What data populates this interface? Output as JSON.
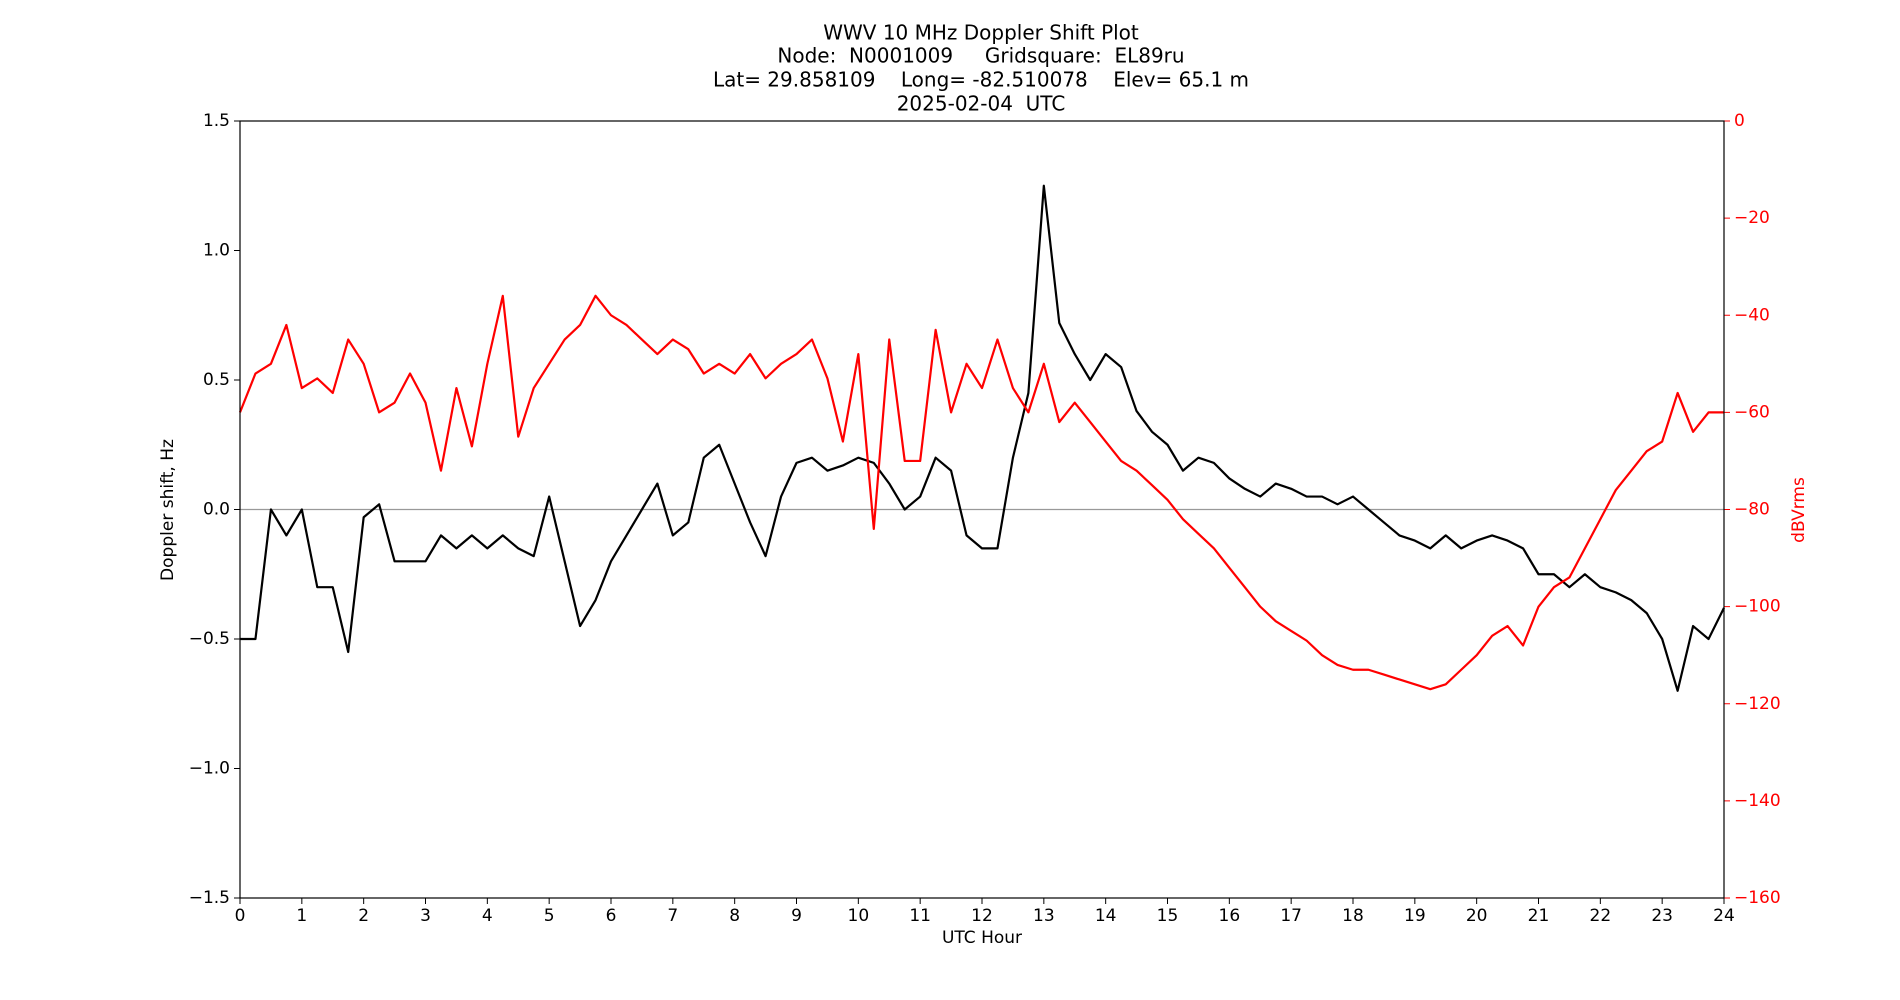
{
  "chart_data": {
    "type": "line",
    "title": "WWV 10 MHz Doppler Shift Plot",
    "subtitle": [
      "Node:  N0001009     Gridsquare:  EL89ru",
      "Lat= 29.858109    Long= -82.510078    Elev= 65.1 m",
      "2025-02-04  UTC"
    ],
    "xlabel": "UTC Hour",
    "ylabel": "Doppler shift, Hz",
    "y2label": "dBVrms",
    "x": [
      0,
      0.25,
      0.5,
      0.75,
      1,
      1.25,
      1.5,
      1.75,
      2,
      2.25,
      2.5,
      2.75,
      3,
      3.25,
      3.5,
      3.75,
      4,
      4.25,
      4.5,
      4.75,
      5,
      5.25,
      5.5,
      5.75,
      6,
      6.25,
      6.5,
      6.75,
      7,
      7.25,
      7.5,
      7.75,
      8,
      8.25,
      8.5,
      8.75,
      9,
      9.25,
      9.5,
      9.75,
      10,
      10.25,
      10.5,
      10.75,
      11,
      11.25,
      11.5,
      11.75,
      12,
      12.25,
      12.5,
      12.75,
      13,
      13.25,
      13.5,
      13.75,
      14,
      14.25,
      14.5,
      14.75,
      15,
      15.25,
      15.5,
      15.75,
      16,
      16.25,
      16.5,
      16.75,
      17,
      17.25,
      17.5,
      17.75,
      18,
      18.25,
      18.5,
      18.75,
      19,
      19.25,
      19.5,
      19.75,
      20,
      20.25,
      20.5,
      20.75,
      21,
      21.25,
      21.5,
      21.75,
      22,
      22.25,
      22.5,
      22.75,
      23,
      23.25,
      23.5,
      23.75,
      24
    ],
    "series": [
      {
        "name": "Doppler shift",
        "color": "#000000",
        "values": [
          -0.5,
          -0.5,
          0.0,
          -0.1,
          0.0,
          -0.3,
          -0.3,
          -0.55,
          -0.03,
          0.02,
          -0.2,
          -0.2,
          -0.2,
          -0.1,
          -0.15,
          -0.1,
          -0.15,
          -0.1,
          -0.15,
          -0.18,
          0.05,
          -0.2,
          -0.45,
          -0.35,
          -0.2,
          -0.1,
          0.0,
          0.1,
          -0.1,
          -0.05,
          0.2,
          0.25,
          0.1,
          -0.05,
          -0.18,
          0.05,
          0.18,
          0.2,
          0.15,
          0.17,
          0.2,
          0.18,
          0.1,
          0.0,
          0.05,
          0.2,
          0.15,
          -0.1,
          -0.15,
          -0.15,
          0.2,
          0.45,
          1.25,
          0.72,
          0.6,
          0.5,
          0.6,
          0.55,
          0.38,
          0.3,
          0.25,
          0.15,
          0.2,
          0.18,
          0.12,
          0.08,
          0.05,
          0.1,
          0.08,
          0.05,
          0.05,
          0.02,
          0.05,
          0.0,
          -0.05,
          -0.1,
          -0.12,
          -0.15,
          -0.1,
          -0.15,
          -0.12,
          -0.1,
          -0.12,
          -0.15,
          -0.25,
          -0.25,
          -0.3,
          -0.25,
          -0.3,
          -0.32,
          -0.35,
          -0.4,
          -0.5,
          -0.7,
          -0.45,
          -0.5,
          -0.38
        ]
      },
      {
        "name": "dBVrms",
        "color": "#ff0000",
        "axis": "y2",
        "values": [
          -60,
          -52,
          -50,
          -42,
          -55,
          -53,
          -56,
          -45,
          -50,
          -60,
          -58,
          -52,
          -58,
          -72,
          -55,
          -67,
          -50,
          -36,
          -65,
          -55,
          -50,
          -45,
          -42,
          -36,
          -40,
          -42,
          -45,
          -48,
          -45,
          -47,
          -52,
          -50,
          -52,
          -48,
          -53,
          -50,
          -48,
          -45,
          -53,
          -66,
          -48,
          -84,
          -45,
          -70,
          -70,
          -43,
          -60,
          -50,
          -55,
          -45,
          -55,
          -60,
          -50,
          -62,
          -58,
          -62,
          -66,
          -70,
          -72,
          -75,
          -78,
          -82,
          -85,
          -88,
          -92,
          -96,
          -100,
          -103,
          -105,
          -107,
          -110,
          -112,
          -113,
          -113,
          -114,
          -115,
          -116,
          -117,
          -116,
          -113,
          -110,
          -106,
          -104,
          -108,
          -100,
          -96,
          -94,
          -88,
          -82,
          -76,
          -72,
          -68,
          -66,
          -56,
          -64,
          -60,
          -60
        ]
      }
    ],
    "xlim": [
      0,
      24
    ],
    "xticks": [
      0,
      1,
      2,
      3,
      4,
      5,
      6,
      7,
      8,
      9,
      10,
      11,
      12,
      13,
      14,
      15,
      16,
      17,
      18,
      19,
      20,
      21,
      22,
      23,
      24
    ],
    "ylim": [
      -1.5,
      1.5
    ],
    "yticks": [
      {
        "value": -1.5,
        "label": "−1.5"
      },
      {
        "value": -1.0,
        "label": "−1.0"
      },
      {
        "value": -0.5,
        "label": "−0.5"
      },
      {
        "value": 0,
        "label": "0.0"
      },
      {
        "value": 0.5,
        "label": "0.5"
      },
      {
        "value": 1.0,
        "label": "1.0"
      },
      {
        "value": 1.5,
        "label": "1.5"
      }
    ],
    "y2lim": [
      -160,
      0
    ],
    "y2ticks": [
      {
        "value": -160,
        "label": "−160"
      },
      {
        "value": -140,
        "label": "−140"
      },
      {
        "value": -120,
        "label": "−120"
      },
      {
        "value": -100,
        "label": "−100"
      },
      {
        "value": -80,
        "label": "−80"
      },
      {
        "value": -60,
        "label": "−60"
      },
      {
        "value": -40,
        "label": "−40"
      },
      {
        "value": -20,
        "label": "−20"
      },
      0
    ],
    "y2color": "#ff0000",
    "grid": false
  }
}
